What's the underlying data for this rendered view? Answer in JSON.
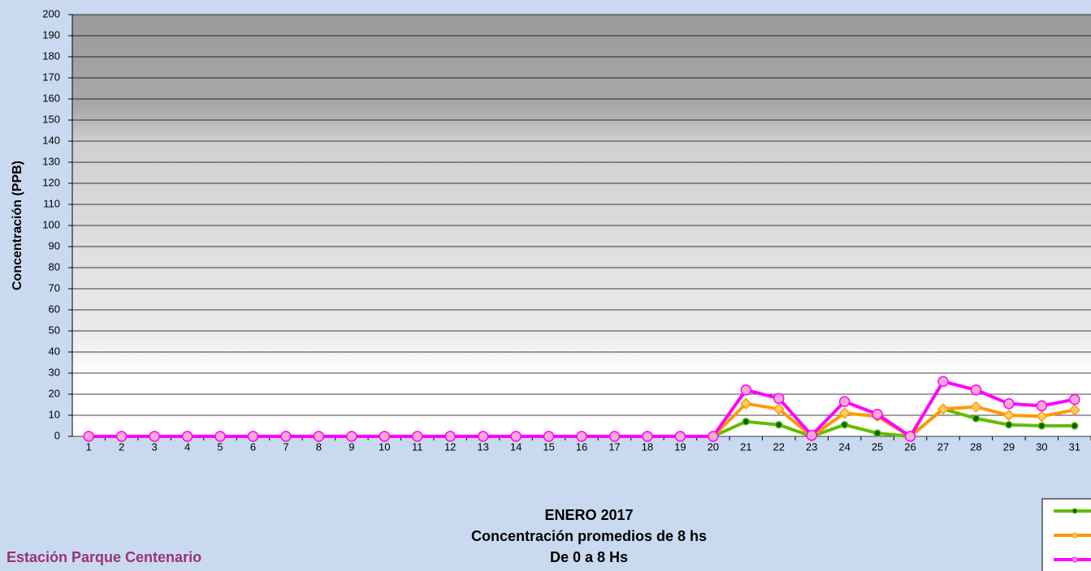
{
  "chart_data": {
    "type": "line",
    "title_lines": [
      "ENERO 2017",
      "Concentración promedios de 8 hs",
      "De 0 a 8 Hs"
    ],
    "station": "Estación  Parque Centenario",
    "y_label": "Concentración  (PPB)",
    "categories": [
      "1",
      "2",
      "3",
      "4",
      "5",
      "6",
      "7",
      "8",
      "9",
      "10",
      "11",
      "12",
      "13",
      "14",
      "15",
      "16",
      "17",
      "18",
      "19",
      "20",
      "21",
      "22",
      "23",
      "24",
      "25",
      "26",
      "27",
      "28",
      "29",
      "30",
      "31"
    ],
    "series": [
      {
        "color": "#66bb00",
        "marker": "#006600",
        "values": [
          0,
          0,
          0,
          0,
          0,
          0,
          0,
          0,
          0,
          0,
          0,
          0,
          0,
          0,
          0,
          0,
          0,
          0,
          0,
          0,
          7,
          5.5,
          0,
          5.5,
          1.5,
          0,
          13,
          8.5,
          5.5,
          5,
          5
        ]
      },
      {
        "color": "#ff9900",
        "marker": "#ffcc66",
        "values": [
          0,
          0,
          0,
          0,
          0,
          0,
          0,
          0,
          0,
          0,
          0,
          0,
          0,
          0,
          0,
          0,
          0,
          0,
          0,
          0,
          15.5,
          13,
          0,
          11,
          9.5,
          0,
          13,
          14,
          10,
          9.5,
          12.5
        ]
      },
      {
        "color": "#ff00ff",
        "marker": "#ffaad4",
        "values": [
          0,
          0,
          0,
          0,
          0,
          0,
          0,
          0,
          0,
          0,
          0,
          0,
          0,
          0,
          0,
          0,
          0,
          0,
          0,
          0,
          22,
          18,
          0.5,
          16.5,
          10.5,
          0,
          26,
          22,
          15.5,
          14.5,
          17.5
        ]
      }
    ],
    "ylim": [
      0,
      200
    ],
    "yticks": [
      0,
      10,
      20,
      30,
      40,
      50,
      60,
      70,
      80,
      90,
      100,
      110,
      120,
      130,
      140,
      150,
      160,
      170,
      180,
      190,
      200
    ],
    "grid": true
  }
}
